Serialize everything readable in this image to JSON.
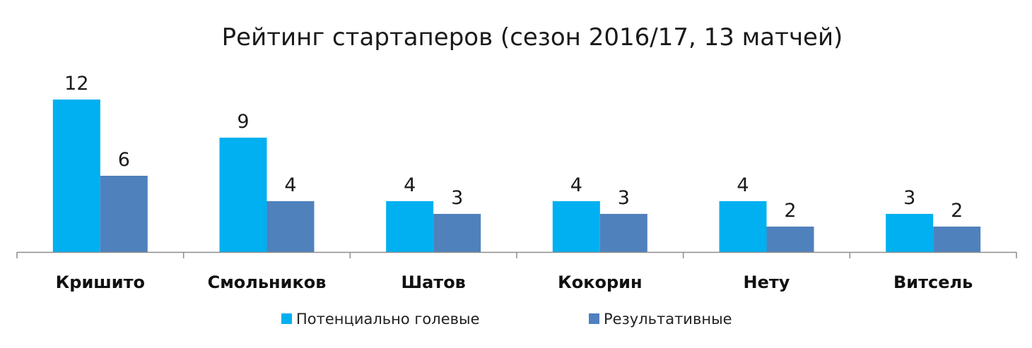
{
  "chart_data": {
    "type": "bar",
    "title": "Рейтинг стартаперов (сезон 2016/17, 13 матчей)",
    "categories": [
      "Кришито",
      "Смольников",
      "Шатов",
      "Кокорин",
      "Нету",
      "Витсель"
    ],
    "series": [
      {
        "name": "Потенциально голевые",
        "values": [
          12,
          9,
          4,
          4,
          4,
          3
        ],
        "color": "#00b0f0"
      },
      {
        "name": "Результативные",
        "values": [
          6,
          4,
          3,
          3,
          2,
          2
        ],
        "color": "#4f81bd"
      }
    ],
    "xlabel": "",
    "ylabel": "",
    "ylim": [
      0,
      12
    ],
    "grid": false,
    "data_labels": true,
    "legend_position": "bottom"
  }
}
